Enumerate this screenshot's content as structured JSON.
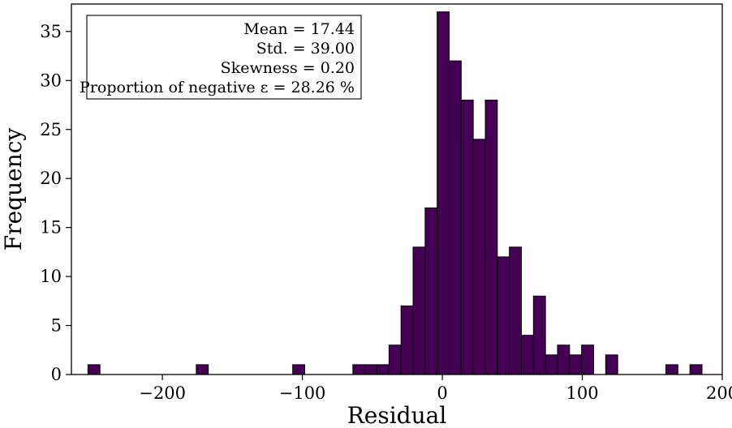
{
  "chart_data": {
    "type": "bar",
    "title": "",
    "xlabel": "Residual",
    "ylabel": "Frequency",
    "xlim": [
      -265,
      200
    ],
    "ylim": [
      0,
      37.8
    ],
    "grid": false,
    "bin_width": 8.6,
    "xticks": [
      {
        "value": -200,
        "label": "−200"
      },
      {
        "value": -100,
        "label": "−100"
      },
      {
        "value": 0,
        "label": "0"
      },
      {
        "value": 100,
        "label": "100"
      },
      {
        "value": 200,
        "label": "200"
      }
    ],
    "yticks": [
      {
        "value": 0,
        "label": "0"
      },
      {
        "value": 5,
        "label": "5"
      },
      {
        "value": 10,
        "label": "10"
      },
      {
        "value": 15,
        "label": "15"
      },
      {
        "value": 20,
        "label": "20"
      },
      {
        "value": 25,
        "label": "25"
      },
      {
        "value": 30,
        "label": "30"
      },
      {
        "value": 35,
        "label": "35"
      }
    ],
    "bins": [
      {
        "start": -253.2,
        "count": 1
      },
      {
        "start": -175.8,
        "count": 1
      },
      {
        "start": -106.9,
        "count": 1
      },
      {
        "start": -63.9,
        "count": 1
      },
      {
        "start": -55.3,
        "count": 1
      },
      {
        "start": -46.7,
        "count": 1
      },
      {
        "start": -38.1,
        "count": 3
      },
      {
        "start": -29.5,
        "count": 7
      },
      {
        "start": -20.9,
        "count": 13
      },
      {
        "start": -12.3,
        "count": 17
      },
      {
        "start": -3.7,
        "count": 37
      },
      {
        "start": 4.9,
        "count": 32
      },
      {
        "start": 13.5,
        "count": 28
      },
      {
        "start": 22.1,
        "count": 24
      },
      {
        "start": 30.7,
        "count": 28
      },
      {
        "start": 39.3,
        "count": 12
      },
      {
        "start": 47.9,
        "count": 13
      },
      {
        "start": 56.5,
        "count": 4
      },
      {
        "start": 65.1,
        "count": 8
      },
      {
        "start": 73.7,
        "count": 2
      },
      {
        "start": 82.3,
        "count": 3
      },
      {
        "start": 90.9,
        "count": 2
      },
      {
        "start": 99.5,
        "count": 3
      },
      {
        "start": 116.7,
        "count": 2
      },
      {
        "start": 159.7,
        "count": 1
      },
      {
        "start": 176.9,
        "count": 1
      }
    ],
    "bar_color": "#440154",
    "edge_color": "#000000",
    "annotation": {
      "placement": "top-left",
      "lines": [
        "Mean = 17.44",
        "Std. = 39.00",
        "Skewness = 0.20",
        "Proportion of negative ε = 28.26 %"
      ]
    }
  }
}
